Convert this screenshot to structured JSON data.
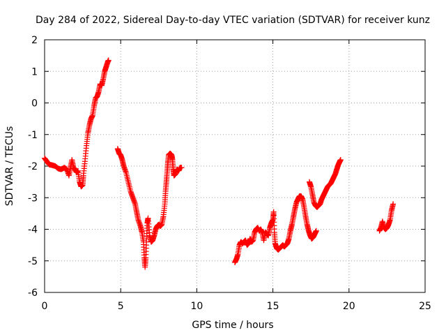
{
  "chart_data": {
    "type": "scatter",
    "title": "Day 284 of 2022, Sidereal Day-to-day VTEC variation (SDTVAR) for receiver kunz",
    "xlabel": "GPS time / hours",
    "ylabel": "SDTVAR / TECUs",
    "xlim": [
      0,
      25
    ],
    "ylim": [
      -6,
      2
    ],
    "xticks": [
      0,
      5,
      10,
      15,
      20,
      25
    ],
    "yticks": [
      -6,
      -5,
      -4,
      -3,
      -2,
      -1,
      0,
      1,
      2
    ],
    "grid": true,
    "marker": "+",
    "series": [
      {
        "color": "#ff0000",
        "segments": [
          [
            [
              0.0,
              -1.75
            ],
            [
              0.15,
              -1.85
            ],
            [
              0.3,
              -1.95
            ],
            [
              0.5,
              -1.97
            ],
            [
              0.7,
              -2.0
            ],
            [
              0.9,
              -2.08
            ],
            [
              1.1,
              -2.1
            ],
            [
              1.3,
              -2.05
            ],
            [
              1.45,
              -2.1
            ],
            [
              1.6,
              -2.3
            ],
            [
              1.7,
              -2.05
            ],
            [
              1.8,
              -1.8
            ],
            [
              1.9,
              -2.05
            ],
            [
              2.0,
              -2.1
            ],
            [
              2.1,
              -2.2
            ],
            [
              2.2,
              -2.15
            ],
            [
              2.3,
              -2.5
            ],
            [
              2.4,
              -2.65
            ],
            [
              2.5,
              -2.6
            ],
            [
              2.55,
              -2.3
            ],
            [
              2.65,
              -1.85
            ],
            [
              2.75,
              -1.35
            ],
            [
              2.85,
              -0.95
            ],
            [
              2.95,
              -0.7
            ],
            [
              3.05,
              -0.5
            ],
            [
              3.15,
              -0.4
            ],
            [
              3.25,
              -0.1
            ],
            [
              3.35,
              0.15
            ],
            [
              3.45,
              0.2
            ],
            [
              3.55,
              0.35
            ],
            [
              3.65,
              0.6
            ],
            [
              3.75,
              0.55
            ],
            [
              3.85,
              0.75
            ],
            [
              3.95,
              1.0
            ],
            [
              4.05,
              1.15
            ],
            [
              4.15,
              1.3
            ],
            [
              4.2,
              1.35
            ]
          ],
          [
            [
              4.8,
              -1.45
            ],
            [
              4.9,
              -1.6
            ],
            [
              5.0,
              -1.65
            ],
            [
              5.1,
              -1.8
            ],
            [
              5.2,
              -2.0
            ],
            [
              5.35,
              -2.2
            ],
            [
              5.5,
              -2.5
            ],
            [
              5.65,
              -2.8
            ],
            [
              5.8,
              -3.0
            ],
            [
              5.95,
              -3.2
            ],
            [
              6.05,
              -3.45
            ],
            [
              6.15,
              -3.7
            ],
            [
              6.3,
              -3.9
            ],
            [
              6.4,
              -4.1
            ],
            [
              6.5,
              -4.4
            ],
            [
              6.55,
              -4.9
            ],
            [
              6.6,
              -5.2
            ],
            [
              6.65,
              -4.9
            ],
            [
              6.7,
              -4.3
            ],
            [
              6.75,
              -3.8
            ],
            [
              6.8,
              -3.65
            ],
            [
              6.9,
              -4.2
            ],
            [
              7.0,
              -4.4
            ],
            [
              7.1,
              -4.35
            ],
            [
              7.2,
              -4.2
            ],
            [
              7.3,
              -4.0
            ],
            [
              7.4,
              -3.9
            ],
            [
              7.5,
              -3.85
            ],
            [
              7.6,
              -3.9
            ],
            [
              7.7,
              -3.85
            ],
            [
              7.8,
              -3.6
            ],
            [
              7.9,
              -3.2
            ],
            [
              7.95,
              -2.8
            ],
            [
              8.0,
              -2.5
            ],
            [
              8.05,
              -2.2
            ],
            [
              8.1,
              -1.9
            ],
            [
              8.15,
              -1.65
            ],
            [
              8.25,
              -1.6
            ],
            [
              8.35,
              -1.65
            ],
            [
              8.4,
              -1.8
            ],
            [
              8.45,
              -2.1
            ],
            [
              8.5,
              -2.3
            ],
            [
              8.6,
              -2.25
            ],
            [
              8.7,
              -2.1
            ],
            [
              8.8,
              -2.15
            ],
            [
              8.9,
              -2.05
            ],
            [
              9.0,
              -2.05
            ]
          ],
          [
            [
              12.5,
              -5.05
            ],
            [
              12.6,
              -4.95
            ],
            [
              12.7,
              -4.8
            ],
            [
              12.8,
              -4.5
            ],
            [
              12.9,
              -4.4
            ],
            [
              13.0,
              -4.45
            ],
            [
              13.1,
              -4.4
            ],
            [
              13.2,
              -4.35
            ],
            [
              13.3,
              -4.5
            ],
            [
              13.4,
              -4.45
            ],
            [
              13.5,
              -4.3
            ],
            [
              13.6,
              -4.4
            ],
            [
              13.7,
              -4.35
            ],
            [
              13.8,
              -4.1
            ],
            [
              13.9,
              -4.0
            ],
            [
              14.0,
              -3.95
            ],
            [
              14.1,
              -4.05
            ],
            [
              14.2,
              -4.0
            ],
            [
              14.3,
              -4.1
            ],
            [
              14.4,
              -4.35
            ],
            [
              14.5,
              -4.1
            ],
            [
              14.6,
              -4.15
            ],
            [
              14.7,
              -4.2
            ],
            [
              14.8,
              -3.95
            ],
            [
              14.9,
              -3.8
            ],
            [
              15.0,
              -3.7
            ],
            [
              15.05,
              -3.45
            ],
            [
              15.1,
              -4.1
            ],
            [
              15.15,
              -4.45
            ],
            [
              15.25,
              -4.6
            ],
            [
              15.35,
              -4.65
            ],
            [
              15.45,
              -4.6
            ],
            [
              15.55,
              -4.55
            ],
            [
              15.65,
              -4.5
            ],
            [
              15.75,
              -4.55
            ],
            [
              15.85,
              -4.5
            ],
            [
              15.95,
              -4.45
            ],
            [
              16.05,
              -4.3
            ],
            [
              16.15,
              -4.05
            ],
            [
              16.25,
              -3.85
            ],
            [
              16.35,
              -3.6
            ],
            [
              16.45,
              -3.35
            ],
            [
              16.55,
              -3.15
            ],
            [
              16.65,
              -3.05
            ],
            [
              16.75,
              -2.95
            ],
            [
              16.85,
              -2.95
            ],
            [
              16.95,
              -3.05
            ],
            [
              17.05,
              -3.3
            ],
            [
              17.15,
              -3.6
            ],
            [
              17.25,
              -3.85
            ],
            [
              17.35,
              -4.05
            ],
            [
              17.45,
              -4.2
            ],
            [
              17.55,
              -4.3
            ],
            [
              17.65,
              -4.25
            ],
            [
              17.75,
              -4.15
            ],
            [
              17.85,
              -4.05
            ]
          ],
          [
            [
              17.4,
              -2.5
            ],
            [
              17.5,
              -2.65
            ],
            [
              17.6,
              -2.9
            ],
            [
              17.7,
              -3.15
            ],
            [
              17.8,
              -3.25
            ],
            [
              17.9,
              -3.3
            ],
            [
              18.0,
              -3.25
            ],
            [
              18.1,
              -3.2
            ],
            [
              18.2,
              -3.05
            ],
            [
              18.3,
              -2.95
            ],
            [
              18.4,
              -2.85
            ],
            [
              18.5,
              -2.75
            ],
            [
              18.6,
              -2.65
            ],
            [
              18.7,
              -2.6
            ],
            [
              18.8,
              -2.55
            ],
            [
              18.9,
              -2.45
            ],
            [
              19.0,
              -2.35
            ],
            [
              19.1,
              -2.25
            ],
            [
              19.2,
              -2.1
            ],
            [
              19.3,
              -1.95
            ],
            [
              19.4,
              -1.85
            ],
            [
              19.45,
              -1.8
            ]
          ],
          [
            [
              22.0,
              -4.05
            ],
            [
              22.1,
              -3.95
            ],
            [
              22.2,
              -3.75
            ],
            [
              22.3,
              -3.95
            ],
            [
              22.4,
              -4.0
            ],
            [
              22.5,
              -3.95
            ],
            [
              22.6,
              -3.85
            ],
            [
              22.7,
              -3.7
            ],
            [
              22.8,
              -3.4
            ],
            [
              22.9,
              -3.2
            ]
          ]
        ]
      }
    ]
  }
}
